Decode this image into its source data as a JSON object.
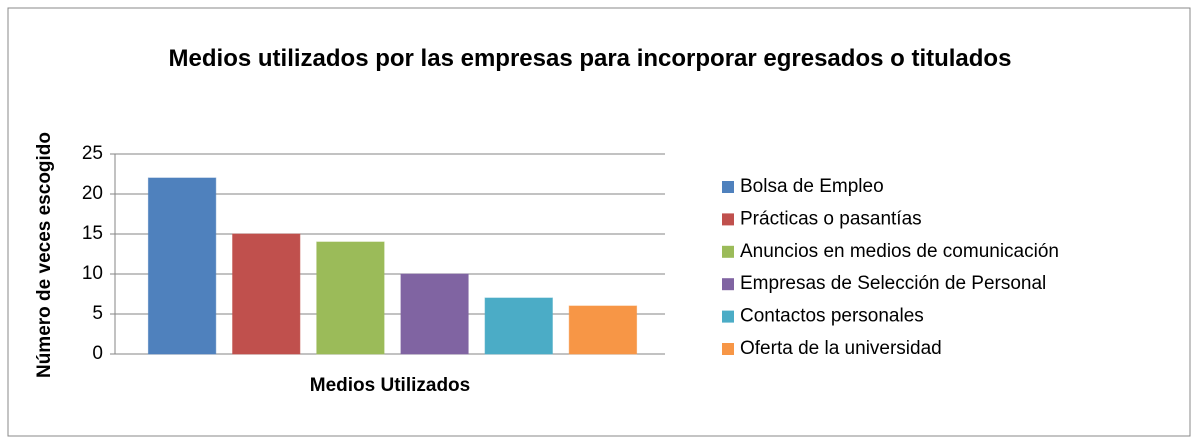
{
  "chart_data": {
    "type": "bar",
    "title": "Medios utilizados por las empresas  para incorporar egresados o titulados",
    "xlabel": "Medios Utilizados",
    "ylabel": "Número de veces escogido",
    "categories": [
      null
    ],
    "series": [
      {
        "name": "Bolsa de Empleo",
        "color": "#4f81bd",
        "values": [
          22
        ]
      },
      {
        "name": "Prácticas o pasantías",
        "color": "#c0504d",
        "values": [
          15
        ]
      },
      {
        "name": "Anuncios en medios de comunicación",
        "color": "#9bbb59",
        "values": [
          14
        ]
      },
      {
        "name": "Empresas de Selección de Personal",
        "color": "#8064a2",
        "values": [
          10
        ]
      },
      {
        "name": "Contactos personales",
        "color": "#4bacc6",
        "values": [
          7
        ]
      },
      {
        "name": "Oferta de la universidad",
        "color": "#f79646",
        "values": [
          6
        ]
      }
    ],
    "ylim": [
      0,
      25
    ],
    "yticks": [
      0,
      5,
      10,
      15,
      20,
      25
    ],
    "grid": true,
    "legend": "right"
  }
}
